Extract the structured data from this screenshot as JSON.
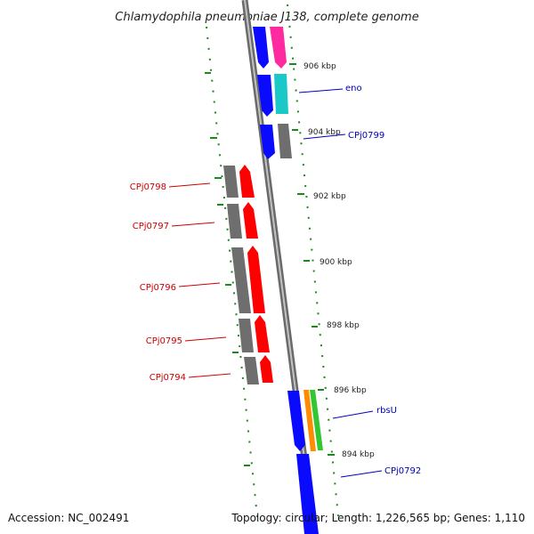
{
  "title": "Chlamydophila pneumoniae J138, complete genome",
  "footer": {
    "accession": "Accession: NC_002491",
    "summary": "Topology: circular; Length: 1,226,565 bp; Genes: 1,110"
  },
  "kbp_labels": [
    "906 kbp",
    "904 kbp",
    "902 kbp",
    "900 kbp",
    "898 kbp",
    "896 kbp",
    "894 kbp"
  ],
  "genes": {
    "forward": [
      "eno",
      "CPj0799",
      "rbsU",
      "CPj0792"
    ],
    "reverse": [
      "CPj0798",
      "CPj0797",
      "CPj0796",
      "CPj0795",
      "CPj0794"
    ]
  },
  "colors": {
    "forward_cds": "#0a0aff",
    "reverse_cds": "#ff0000",
    "gene_grey": "#6e6e6e",
    "label_blue": "#0000bb",
    "label_red": "#cc0000",
    "gc_dots": "#1a8a1a",
    "backbone": "#808080",
    "magenta": "#ff2aa0",
    "cyan": "#1ac8c8",
    "orange": "#ff8c00",
    "green": "#33c633"
  }
}
